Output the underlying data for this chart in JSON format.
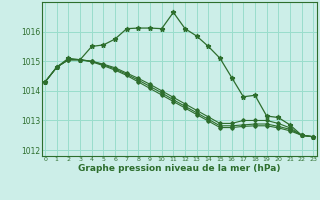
{
  "title": "Graphe pression niveau de la mer (hPa)",
  "bg_color": "#cceee8",
  "grid_color": "#99ddcc",
  "line_color": "#2d6e2d",
  "xlim": [
    -0.3,
    23.3
  ],
  "ylim": [
    1011.8,
    1017.0
  ],
  "yticks": [
    1012,
    1013,
    1014,
    1015,
    1016
  ],
  "xticks": [
    0,
    1,
    2,
    3,
    4,
    5,
    6,
    7,
    8,
    9,
    10,
    11,
    12,
    13,
    14,
    15,
    16,
    17,
    18,
    19,
    20,
    21,
    22,
    23
  ],
  "series_main": [
    1014.3,
    1014.8,
    1015.1,
    1015.05,
    1015.5,
    1015.55,
    1015.75,
    1016.1,
    1016.12,
    1016.12,
    1016.1,
    1016.65,
    1016.1,
    1015.85,
    1015.5,
    1015.1,
    1014.45,
    1013.8,
    1013.85,
    1013.15,
    1013.1,
    1012.85,
    1012.5,
    1012.45
  ],
  "series_linear": [
    [
      1014.3,
      1014.8,
      1015.05,
      1015.05,
      1015.0,
      1014.9,
      1014.78,
      1014.6,
      1014.42,
      1014.22,
      1014.0,
      1013.78,
      1013.56,
      1013.34,
      1013.12,
      1012.9,
      1012.9,
      1013.0,
      1013.0,
      1013.0,
      1012.9,
      1012.75,
      1012.5,
      1012.45
    ],
    [
      1014.3,
      1014.8,
      1015.05,
      1015.05,
      1015.0,
      1014.88,
      1014.74,
      1014.56,
      1014.36,
      1014.15,
      1013.93,
      1013.7,
      1013.48,
      1013.26,
      1013.04,
      1012.82,
      1012.82,
      1012.85,
      1012.88,
      1012.88,
      1012.8,
      1012.7,
      1012.5,
      1012.45
    ],
    [
      1014.3,
      1014.8,
      1015.05,
      1015.05,
      1014.98,
      1014.85,
      1014.7,
      1014.52,
      1014.3,
      1014.08,
      1013.86,
      1013.64,
      1013.42,
      1013.2,
      1012.98,
      1012.76,
      1012.76,
      1012.8,
      1012.82,
      1012.82,
      1012.75,
      1012.65,
      1012.5,
      1012.45
    ]
  ]
}
